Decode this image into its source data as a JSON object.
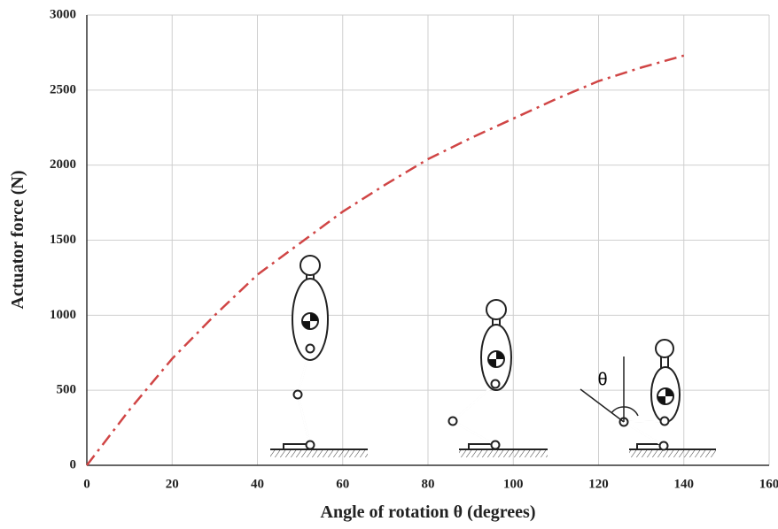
{
  "chart_data": {
    "type": "line",
    "x_label": "Angle of rotation θ (degrees)",
    "y_label": "Actuator force (N)",
    "annotation": "θ",
    "x": [
      0,
      10,
      20,
      30,
      40,
      50,
      60,
      70,
      80,
      90,
      100,
      110,
      120,
      130,
      140
    ],
    "values": [
      0,
      370,
      710,
      1000,
      1270,
      1480,
      1690,
      1870,
      2040,
      2180,
      2310,
      2440,
      2560,
      2650,
      2730
    ],
    "color": "#d04545",
    "line_style": "dash-dot",
    "xlim": [
      0,
      160
    ],
    "xticks": [
      0,
      20,
      40,
      60,
      80,
      100,
      120,
      140,
      160
    ],
    "ylim": [
      0,
      3000
    ],
    "yticks": [
      0,
      500,
      1000,
      1500,
      2000,
      2500,
      3000
    ],
    "grid": true
  }
}
